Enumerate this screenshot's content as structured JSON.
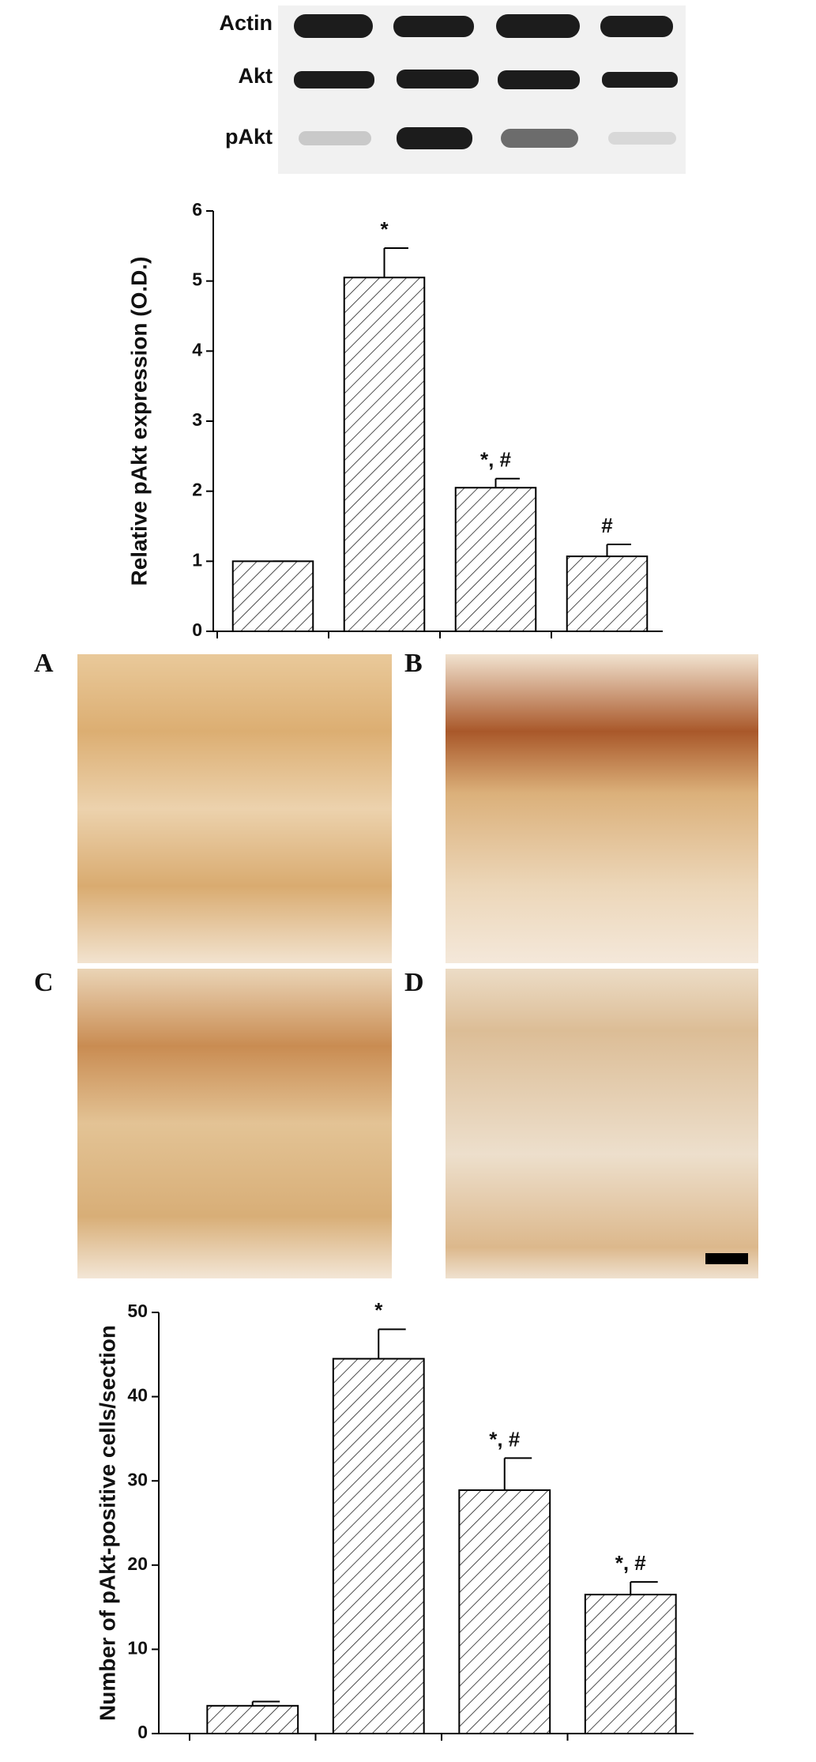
{
  "blot_labels": [
    "Actin",
    "Akt",
    "pAkt"
  ],
  "panel_labels": [
    "A",
    "B",
    "C",
    "D"
  ],
  "chart_data": [
    {
      "type": "bar",
      "y_label": "Relative pAkt expression (O.D.)",
      "categories": [
        null,
        null,
        null,
        null
      ],
      "values": [
        1.0,
        5.05,
        2.05,
        1.07
      ],
      "errors": [
        0,
        0.42,
        0.13,
        0.17
      ],
      "annotations": [
        null,
        "*",
        "*, #",
        "#"
      ],
      "ylim": [
        0,
        6
      ],
      "yticks": [
        0,
        1,
        2,
        3,
        4,
        5,
        6
      ],
      "hatch": true
    },
    {
      "type": "bar",
      "y_label": "Number of pAkt-positive cells/section",
      "categories": [
        null,
        null,
        null,
        null
      ],
      "values": [
        3.3,
        44.5,
        28.9,
        16.5
      ],
      "errors": [
        0.5,
        3.5,
        3.8,
        1.5
      ],
      "annotations": [
        null,
        "*",
        "*, #",
        "*, #"
      ],
      "ylim": [
        0,
        50
      ],
      "yticks": [
        0,
        10,
        20,
        30,
        40,
        50
      ],
      "hatch": true
    }
  ]
}
